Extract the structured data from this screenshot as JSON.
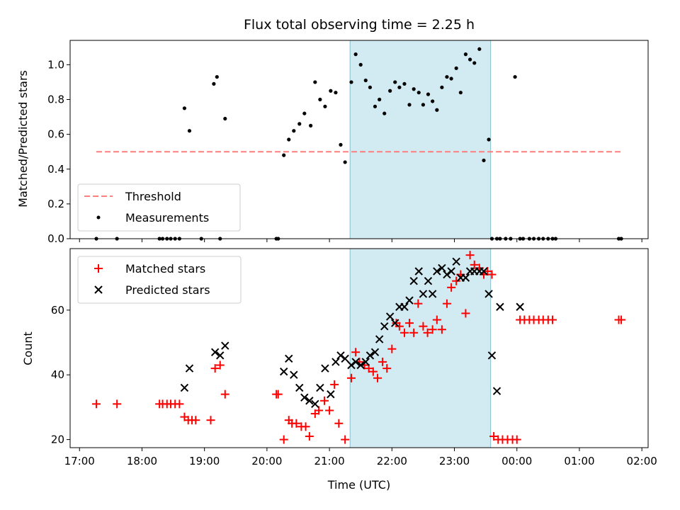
{
  "chart_data": {
    "title": "Flux total observing time = 2.25 h",
    "xlabel": "Time (UTC)",
    "x_ticks": [
      "17:00",
      "18:00",
      "19:00",
      "20:00",
      "21:00",
      "22:00",
      "23:00",
      "00:00",
      "01:00",
      "02:00"
    ],
    "x_range_hours": [
      16.85,
      26.1
    ],
    "highlight_span_hours": [
      21.33,
      23.58
    ],
    "highlight_color": "#add8e6",
    "panels": [
      {
        "type": "scatter",
        "ylabel": "Matched/Predicted stars",
        "ylim": [
          0,
          1.14
        ],
        "y_ticks": [
          0.0,
          0.2,
          0.4,
          0.6,
          0.8,
          1.0
        ],
        "y_tick_labels": [
          "0.0",
          "0.2",
          "0.4",
          "0.6",
          "0.8",
          "1.0"
        ],
        "threshold": {
          "name": "Threshold",
          "value": 0.5,
          "x_range_hours": [
            17.27,
            25.67
          ],
          "color": "#ff7f7f"
        },
        "legend": [
          "Threshold",
          "Measurements"
        ],
        "legend_position": "lower-left",
        "series": [
          {
            "name": "Measurements",
            "color": "#000000",
            "marker": "dot",
            "x_hours": [
              17.27,
              17.6,
              18.28,
              18.33,
              18.4,
              18.46,
              18.53,
              18.6,
              18.68,
              18.76,
              18.95,
              19.15,
              19.2,
              19.25,
              19.33,
              20.15,
              20.18,
              20.27,
              20.35,
              20.43,
              20.52,
              20.6,
              20.7,
              20.77,
              20.85,
              20.93,
              21.02,
              21.1,
              21.18,
              21.25,
              21.35,
              21.42,
              21.5,
              21.58,
              21.65,
              21.73,
              21.8,
              21.88,
              21.97,
              22.05,
              22.12,
              22.2,
              22.28,
              22.35,
              22.43,
              22.5,
              22.58,
              22.65,
              22.72,
              22.8,
              22.88,
              22.95,
              23.03,
              23.1,
              23.18,
              23.25,
              23.32,
              23.4,
              23.47,
              23.55,
              23.6,
              23.68,
              23.73,
              23.82,
              23.9,
              23.97,
              24.05,
              24.1,
              24.2,
              24.27,
              24.35,
              24.42,
              24.5,
              24.57,
              24.62,
              25.63,
              25.67
            ],
            "y": [
              0,
              0,
              0,
              0,
              0,
              0,
              0,
              0,
              0.75,
              0.62,
              0,
              0.89,
              0.93,
              0,
              0.69,
              0,
              0,
              0.48,
              0.57,
              0.62,
              0.66,
              0.72,
              0.65,
              0.9,
              0.8,
              0.76,
              0.85,
              0.84,
              0.54,
              0.44,
              0.9,
              1.06,
              1.0,
              0.91,
              0.87,
              0.76,
              0.8,
              0.72,
              0.85,
              0.9,
              0.87,
              0.89,
              0.77,
              0.86,
              0.84,
              0.77,
              0.83,
              0.79,
              0.74,
              0.87,
              0.93,
              0.92,
              0.98,
              0.84,
              1.06,
              1.03,
              1.01,
              1.09,
              0.45,
              0.57,
              0,
              0,
              0,
              0,
              0,
              0.93,
              0,
              0,
              0,
              0,
              0,
              0,
              0,
              0,
              0,
              0,
              0
            ]
          }
        ]
      },
      {
        "type": "scatter",
        "ylabel": "Count",
        "ylim": [
          17.5,
          79
        ],
        "y_ticks": [
          20,
          40,
          60
        ],
        "y_tick_labels": [
          "20",
          "40",
          "60"
        ],
        "legend": [
          "Matched stars",
          "Predicted stars"
        ],
        "legend_position": "upper-left",
        "series": [
          {
            "name": "Matched stars",
            "color": "#ff0000",
            "marker": "plus",
            "x_hours": [
              17.27,
              17.6,
              18.28,
              18.33,
              18.4,
              18.46,
              18.53,
              18.6,
              18.68,
              18.74,
              18.8,
              18.86,
              19.1,
              19.17,
              19.25,
              19.33,
              20.15,
              20.18,
              20.27,
              20.35,
              20.4,
              20.47,
              20.55,
              20.62,
              20.68,
              20.77,
              20.83,
              20.92,
              21.0,
              21.08,
              21.15,
              21.25,
              21.35,
              21.42,
              21.48,
              21.56,
              21.63,
              21.7,
              21.77,
              21.85,
              21.92,
              22.0,
              22.07,
              22.12,
              22.2,
              22.28,
              22.35,
              22.42,
              22.5,
              22.57,
              22.65,
              22.72,
              22.8,
              22.88,
              22.95,
              23.03,
              23.1,
              23.18,
              23.25,
              23.32,
              23.4,
              23.47,
              23.53,
              23.6,
              23.63,
              23.7,
              23.77,
              23.85,
              23.93,
              24.0,
              24.05,
              24.12,
              24.2,
              24.27,
              24.35,
              24.42,
              24.5,
              24.57,
              25.63,
              25.67
            ],
            "y": [
              31,
              31,
              31,
              31,
              31,
              31,
              31,
              31,
              27,
              26,
              26,
              26,
              26,
              42,
              43,
              34,
              34,
              34,
              20,
              26,
              25,
              25,
              24,
              24,
              21,
              28,
              29,
              32,
              29,
              37,
              25,
              20,
              39,
              47,
              44,
              43,
              42,
              41,
              39,
              44,
              42,
              48,
              56,
              55,
              53,
              56,
              53,
              62,
              55,
              53,
              54,
              57,
              54,
              62,
              67,
              69,
              71,
              59,
              77,
              74,
              73,
              71,
              72,
              71,
              21,
              20,
              20,
              20,
              20,
              20,
              57,
              57,
              57,
              57,
              57,
              57,
              57,
              57,
              57,
              57
            ]
          },
          {
            "name": "Predicted stars",
            "color": "#000000",
            "marker": "x",
            "x_hours": [
              18.68,
              18.76,
              19.17,
              19.25,
              19.33,
              20.27,
              20.35,
              20.43,
              20.52,
              20.6,
              20.68,
              20.77,
              20.85,
              20.93,
              21.02,
              21.1,
              21.18,
              21.25,
              21.35,
              21.42,
              21.5,
              21.58,
              21.65,
              21.73,
              21.8,
              21.88,
              21.97,
              22.05,
              22.12,
              22.2,
              22.28,
              22.35,
              22.43,
              22.5,
              22.58,
              22.65,
              22.72,
              22.8,
              22.88,
              22.95,
              23.03,
              23.1,
              23.18,
              23.25,
              23.32,
              23.4,
              23.47,
              23.55,
              23.6,
              23.68,
              23.73,
              24.05
            ],
            "y": [
              36,
              42,
              47,
              46,
              49,
              41,
              45,
              40,
              36,
              33,
              32,
              31,
              36,
              42,
              34,
              44,
              46,
              45,
              43,
              44,
              43,
              44,
              46,
              47,
              51,
              55,
              58,
              56,
              61,
              61,
              63,
              69,
              72,
              65,
              69,
              65,
              72,
              73,
              71,
              72,
              75,
              70,
              70,
              72,
              72,
              72,
              72,
              65,
              46,
              35,
              61,
              61
            ]
          }
        ]
      }
    ]
  }
}
